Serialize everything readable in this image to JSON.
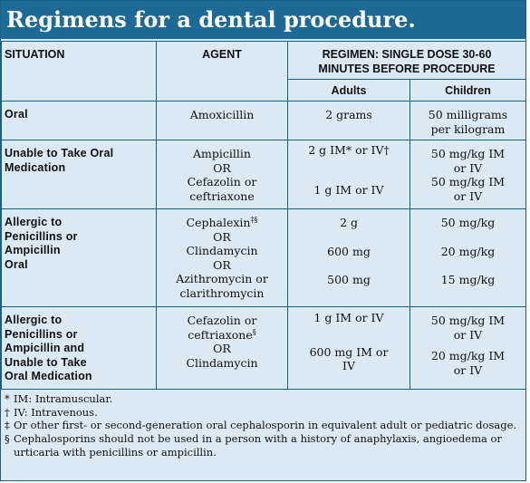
{
  "title": "Regimens for a dental procedure.",
  "headers": {
    "situation": "SITUATION",
    "agent": "AGENT",
    "regimen_line1": "REGIMEN: SINGLE DOSE 30-60",
    "regimen_line2": "MINUTES BEFORE PROCEDURE",
    "adults": "Adults",
    "children": "Children"
  },
  "rows": [
    {
      "situation": [
        "Oral"
      ],
      "agent": [
        "Amoxicillin"
      ],
      "adults": [
        "2 grams"
      ],
      "children": [
        "50 milligrams",
        "per kilogram"
      ]
    },
    {
      "situation": [
        "Unable to Take Oral",
        "Medication"
      ],
      "agent": [
        "Ampicillin",
        "OR",
        "Cefazolin or",
        "ceftriaxone"
      ],
      "adults": [
        "2 g IM* or IV†",
        "1 g IM or IV"
      ],
      "children": [
        "50 mg/kg IM",
        "or IV",
        "50 mg/kg IM",
        "or IV"
      ]
    },
    {
      "situation": [
        "Allergic to",
        "Penicillins or",
        "Ampicillin",
        "Oral"
      ],
      "agent": [
        "Cephalexin",
        "‡§",
        "OR",
        "Clindamycin",
        "OR",
        "Azithromycin or",
        "clarithromycin"
      ],
      "adults": [
        "2 g",
        "600 mg",
        "500 mg"
      ],
      "children": [
        "50 mg/kg",
        "20 mg/kg",
        "15 mg/kg"
      ]
    },
    {
      "situation": [
        "Allergic to",
        "Penicillins or",
        "Ampicillin and",
        "Unable to Take",
        "Oral Medication"
      ],
      "agent": [
        "Cefazolin or",
        "ceftriaxone",
        "§",
        "OR",
        "Clindamycin"
      ],
      "adults": [
        "1 g IM or IV",
        "600 mg IM or",
        "IV"
      ],
      "children": [
        "50 mg/kg IM",
        "or IV",
        "20 mg/kg IM",
        "or IV"
      ]
    }
  ],
  "footnotes": [
    {
      "symbol": "*",
      "text": "IM: Intramuscular."
    },
    {
      "symbol": "†",
      "text": "IV: Intravenous."
    },
    {
      "symbol": "‡",
      "text": "Or other first- or second-generation oral cephalosporin in equivalent adult or pediatric dosage."
    },
    {
      "symbol": "§",
      "text": "Cephalosporins should not be used in a person with a history of anaphylaxis, angioedema or urticaria with penicillins or ampicillin."
    }
  ],
  "colors": {
    "title_background": "#1d6a96",
    "table_background": "#dbe9f4",
    "border": "#1a5f86"
  }
}
